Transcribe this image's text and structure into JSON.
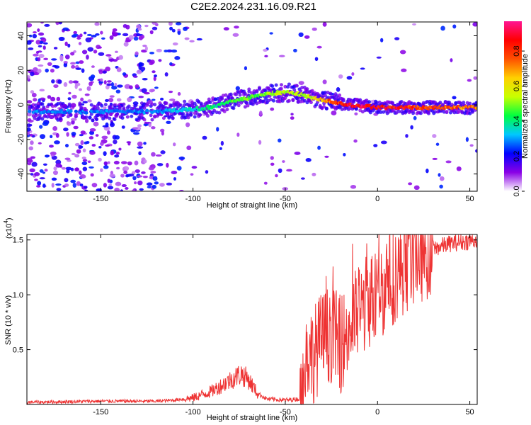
{
  "title": "C2E2.2024.231.16.09.R21",
  "chart_data": [
    {
      "type": "heatmap",
      "name": "spectrogram",
      "xlabel": "Height of straight line (km)",
      "ylabel": "Frequency (Hz)",
      "xlim": [
        -190,
        54
      ],
      "ylim": [
        -50,
        48
      ],
      "xticks": [
        -150,
        -100,
        -50,
        0,
        50
      ],
      "yticks": [
        40,
        20,
        0,
        -20,
        -40
      ],
      "colorbar": {
        "label": "Normalized spectral amplitude",
        "range": [
          0,
          0.97
        ],
        "ticks": [
          "0.0",
          "0.2",
          "0.4",
          "0.6",
          "0.8"
        ],
        "tick_values": [
          0.0,
          0.2,
          0.4,
          0.6,
          0.8
        ],
        "colors": [
          "#ffffff",
          "#8a00e6",
          "#0000ff",
          "#00c8ff",
          "#00ff40",
          "#c8ff00",
          "#ffd000",
          "#ff5000",
          "#ff0000",
          "#ff1493"
        ]
      },
      "dominant_frequency": {
        "x": [
          -190,
          -150,
          -120,
          -105,
          -95,
          -85,
          -75,
          -65,
          -55,
          -45,
          -35,
          -25,
          -15,
          -5,
          5,
          20,
          35,
          54
        ],
        "y": [
          -4,
          -4,
          -4,
          -3,
          -2,
          0,
          3,
          5,
          7,
          7,
          4,
          2,
          0,
          -1,
          -1.5,
          -1.5,
          -1.5,
          -1.5
        ],
        "amplitude": [
          0.3,
          0.3,
          0.3,
          0.35,
          0.4,
          0.45,
          0.5,
          0.5,
          0.55,
          0.55,
          0.6,
          0.8,
          0.9,
          0.95,
          0.9,
          0.85,
          0.8,
          0.75
        ]
      }
    },
    {
      "type": "line",
      "name": "snr",
      "xlabel": "Height of straight line (km)",
      "ylabel": "SNR (10 * v/v)",
      "multiplier": "(x10",
      "multiplier_exp": "4",
      "multiplier_close": ")",
      "xlim": [
        -190,
        54
      ],
      "ylim": [
        0,
        1.55
      ],
      "xticks": [
        -150,
        -100,
        -50,
        0,
        50
      ],
      "yticks": [
        "0.5",
        "1.0",
        "1.5"
      ],
      "ytick_values": [
        0.5,
        1.0,
        1.5
      ],
      "color": "#ee3333",
      "series": {
        "x": [
          -190,
          -150,
          -120,
          -110,
          -100,
          -90,
          -80,
          -74,
          -70,
          -65,
          -60,
          -50,
          -42,
          -40,
          -38,
          -35,
          -30,
          -25,
          -20,
          -15,
          -10,
          -5,
          0,
          5,
          10,
          20,
          30,
          40,
          50,
          54
        ],
        "y": [
          0.02,
          0.03,
          0.03,
          0.04,
          0.06,
          0.12,
          0.22,
          0.28,
          0.23,
          0.1,
          0.05,
          0.04,
          0.05,
          0.2,
          0.5,
          0.45,
          0.6,
          0.65,
          0.55,
          0.7,
          0.85,
          0.95,
          1.0,
          1.1,
          1.2,
          1.35,
          1.42,
          1.47,
          1.49,
          1.5
        ]
      }
    }
  ]
}
